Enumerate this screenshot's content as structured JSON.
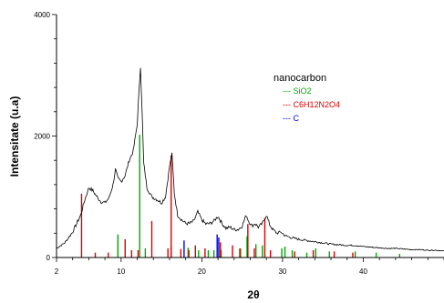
{
  "chart_data": {
    "type": "line",
    "title": "",
    "xlabel": "2θ",
    "ylabel": "Intensitate (u.a)",
    "xlim": [
      2,
      50
    ],
    "ylim": [
      0,
      4000
    ],
    "x_ticks": [
      2,
      10,
      20,
      30,
      40
    ],
    "x_tick_labels": [
      "2",
      "10",
      "20",
      "30",
      "40"
    ],
    "y_ticks": [
      0,
      2000,
      4000
    ],
    "y_tick_labels": [
      "0",
      "2000",
      "4000"
    ],
    "grid": false,
    "legend": {
      "title": "nanocarbon",
      "placement": "top-right",
      "items": [
        {
          "name": "--- SiO2",
          "color": "#00aa00"
        },
        {
          "name": "--- C6H12N2O4",
          "color": "#dd0000"
        },
        {
          "name": "--- C",
          "color": "#0000ee"
        }
      ]
    },
    "pattern": {
      "name": "nanocarbon",
      "color": "#000000",
      "x": [
        2,
        3,
        4,
        5,
        5.5,
        6,
        6.5,
        7,
        7.5,
        8,
        8.5,
        9,
        9.3,
        9.6,
        10,
        10.5,
        11,
        11.5,
        12,
        12.2,
        12.4,
        12.6,
        12.8,
        13.2,
        13.8,
        14.5,
        15,
        15.5,
        16,
        16.3,
        16.6,
        17,
        17.5,
        18,
        18.5,
        19,
        19.5,
        20,
        20.5,
        21,
        21.5,
        22,
        22.5,
        23,
        23.5,
        24,
        24.5,
        25,
        25.5,
        25.8,
        26.2,
        26.6,
        27,
        27.5,
        28,
        28.4,
        28.8,
        29.3,
        29.8,
        30.3,
        31,
        32,
        33,
        34,
        35,
        36,
        37,
        38,
        39,
        40,
        41,
        42,
        43,
        44,
        45,
        46,
        47,
        48,
        49,
        50
      ],
      "y": [
        150,
        240,
        420,
        700,
        950,
        1150,
        1100,
        1000,
        920,
        900,
        980,
        1200,
        1450,
        1300,
        1250,
        1350,
        1600,
        1750,
        2200,
        2700,
        3150,
        2400,
        1550,
        1150,
        1000,
        950,
        900,
        1000,
        1500,
        1700,
        1050,
        700,
        620,
        560,
        560,
        600,
        750,
        620,
        550,
        560,
        600,
        680,
        560,
        480,
        500,
        460,
        460,
        520,
        700,
        600,
        520,
        560,
        500,
        560,
        700,
        540,
        460,
        400,
        420,
        360,
        330,
        300,
        280,
        260,
        240,
        220,
        210,
        200,
        200,
        180,
        170,
        160,
        150,
        150,
        140,
        130,
        130,
        120,
        120,
        110
      ]
    },
    "reference_peaks": [
      {
        "name": "SiO2",
        "color": "#00aa00",
        "x": [
          9.6,
          12.3,
          13.0,
          16.2,
          18.3,
          19.6,
          20.8,
          21.5,
          22.4,
          24.8,
          25.6,
          26.7,
          27.5,
          29.9,
          30.3,
          31.2,
          33.0,
          34.1,
          35.8,
          39.0,
          41.6,
          44.5
        ],
        "y": [
          380,
          2020,
          150,
          200,
          160,
          120,
          120,
          120,
          120,
          150,
          350,
          220,
          200,
          150,
          180,
          120,
          80,
          150,
          100,
          100,
          80,
          60
        ]
      },
      {
        "name": "C6H12N2O4",
        "color": "#dd0000",
        "x": [
          5.1,
          6.8,
          8.4,
          10.5,
          11.3,
          12.1,
          13.8,
          15.8,
          16.2,
          17.4,
          18.4,
          19.2,
          20.4,
          22.3,
          23.8,
          24.7,
          25.7,
          26.5,
          27.8,
          28.5,
          31.5,
          33.8,
          36.4,
          38.7
        ],
        "y": [
          1050,
          80,
          80,
          300,
          120,
          120,
          600,
          150,
          1680,
          140,
          120,
          200,
          150,
          250,
          200,
          150,
          550,
          150,
          650,
          120,
          100,
          120,
          100,
          80
        ]
      },
      {
        "name": "C",
        "color": "#0000ee",
        "x": [
          17.8,
          21.9,
          22.1
        ],
        "y": [
          280,
          380,
          330
        ]
      }
    ]
  }
}
